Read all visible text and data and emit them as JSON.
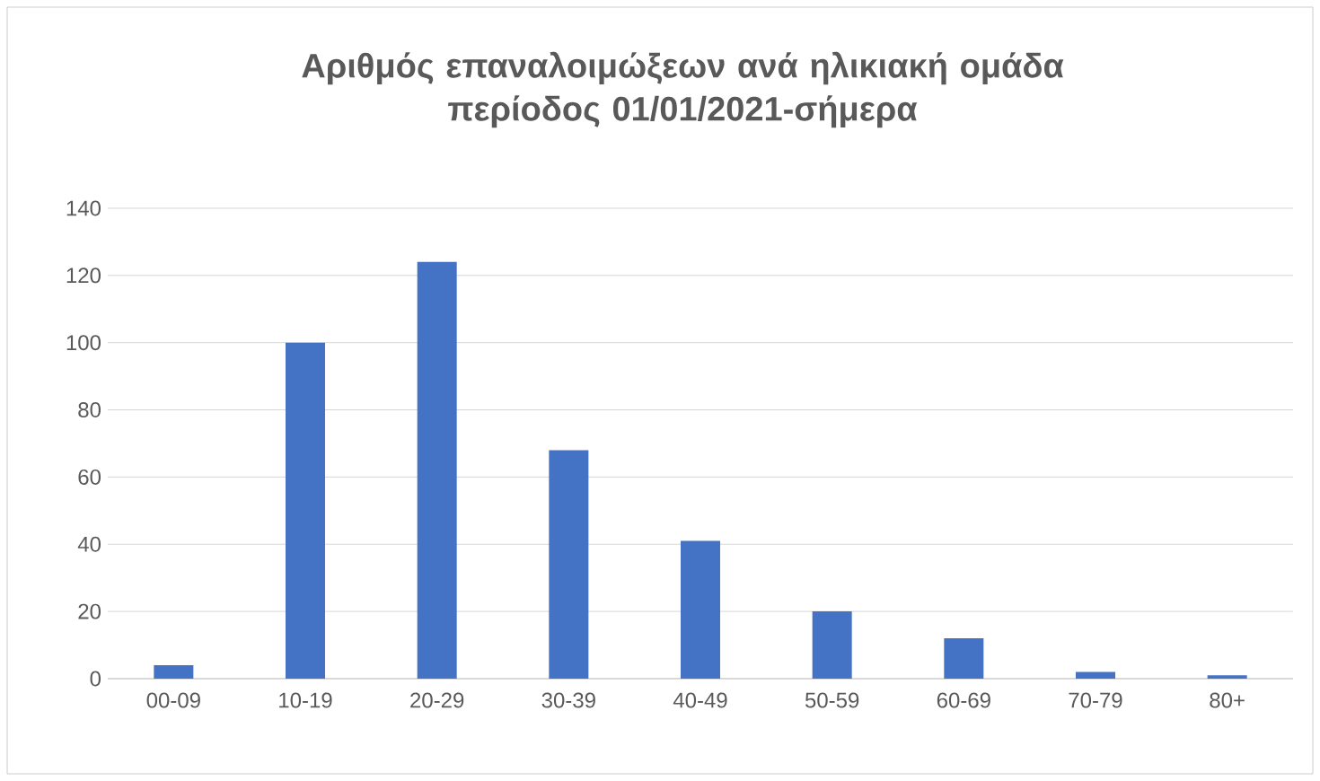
{
  "chart_data": {
    "type": "bar",
    "title": "Αριθμός επαναλοιμώξεων ανά ηλικιακή ομάδα\nπερίοδος 01/01/2021-σήμερα",
    "categories": [
      "00-09",
      "10-19",
      "20-29",
      "30-39",
      "40-49",
      "50-59",
      "60-69",
      "70-79",
      "80+"
    ],
    "values": [
      4,
      100,
      124,
      68,
      41,
      20,
      12,
      2,
      1
    ],
    "color": "#4472c4",
    "ylim": [
      0,
      140
    ],
    "yticks": [
      0,
      20,
      40,
      60,
      80,
      100,
      120,
      140
    ],
    "grid": "y"
  }
}
